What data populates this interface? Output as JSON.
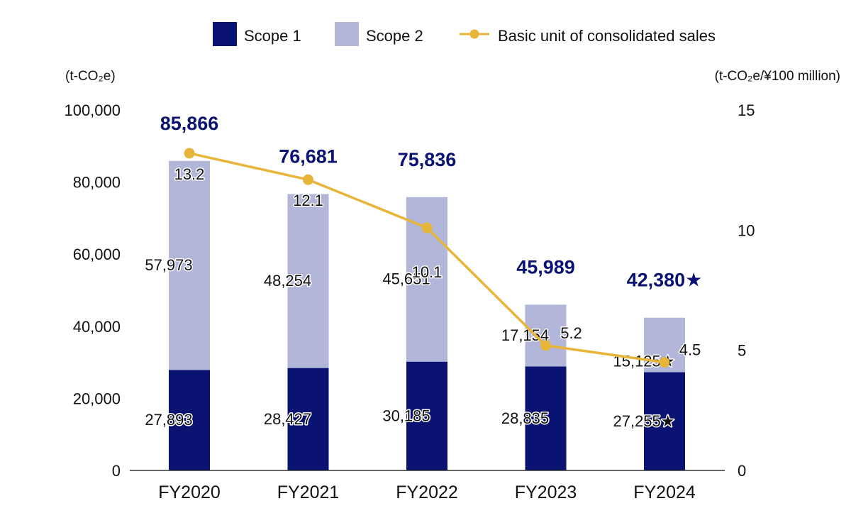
{
  "colors": {
    "scope1": "#0a1372",
    "scope2": "#b2b6d8",
    "line": "#e7b53a",
    "total_text": "#0a1372"
  },
  "legend": {
    "scope1": "Scope 1",
    "scope2": "Scope 2",
    "line": "Basic unit of consolidated sales"
  },
  "axis": {
    "left_unit": "(t-CO₂e)",
    "right_unit": "(t-CO₂e/¥100 million)"
  },
  "chart_data": {
    "type": "bar",
    "stacked": true,
    "categories": [
      "FY2020",
      "FY2021",
      "FY2022",
      "FY2023",
      "FY2024"
    ],
    "series": [
      {
        "name": "Scope 1",
        "values": [
          27893,
          28427,
          30185,
          28835,
          27255
        ],
        "labels": [
          "27,893",
          "28,427",
          "30,185",
          "28,835",
          "27,255★"
        ]
      },
      {
        "name": "Scope 2",
        "values": [
          57973,
          48254,
          45651,
          17154,
          15125
        ],
        "labels": [
          "57,973",
          "48,254",
          "45,651",
          "17,154",
          "15,125★"
        ]
      }
    ],
    "totals": {
      "values": [
        85866,
        76681,
        75836,
        45989,
        42380
      ],
      "labels": [
        "85,866",
        "76,681",
        "75,836",
        "45,989",
        "42,380★"
      ]
    },
    "line_series": {
      "name": "Basic unit of consolidated sales",
      "axis": "right",
      "values": [
        13.2,
        12.1,
        10.1,
        5.2,
        4.5
      ],
      "labels": [
        "13.2",
        "12.1",
        "10.1",
        "5.2",
        "4.5"
      ]
    },
    "ylim": [
      0,
      100000
    ],
    "y_ticks": [
      0,
      20000,
      40000,
      60000,
      80000,
      100000
    ],
    "y_tick_labels": [
      "0",
      "20,000",
      "40,000",
      "60,000",
      "80,000",
      "100,000"
    ],
    "y2lim": [
      0,
      15
    ],
    "y2_ticks": [
      0,
      5,
      10,
      15
    ],
    "y2_tick_labels": [
      "0",
      "5",
      "10",
      "15"
    ],
    "grid": false,
    "legend_position": "top"
  }
}
